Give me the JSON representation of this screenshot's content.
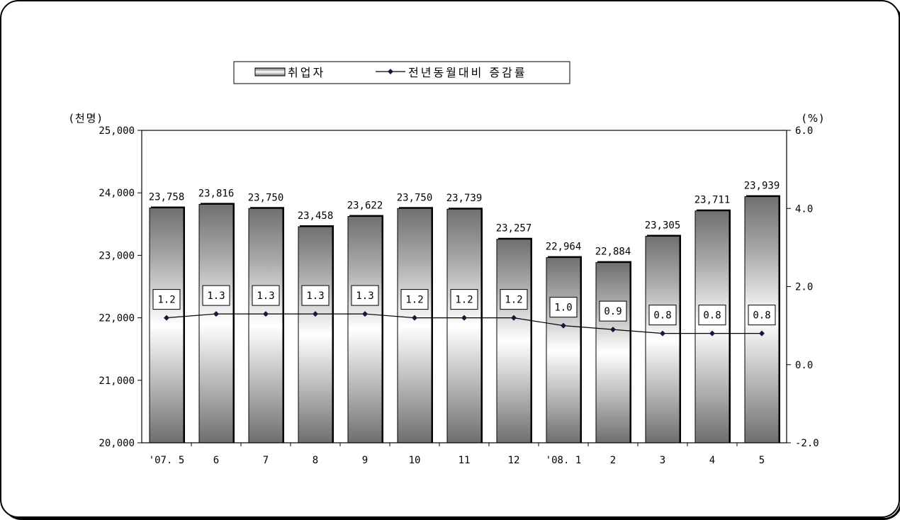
{
  "chart_data": {
    "type": "bar",
    "categories": [
      "'07. 5",
      "6",
      "7",
      "8",
      "9",
      "10",
      "11",
      "12",
      "'08. 1",
      "2",
      "3",
      "4",
      "5"
    ],
    "series": [
      {
        "name": "취업자",
        "type": "bar",
        "axis": "left",
        "values": [
          23758,
          23816,
          23750,
          23458,
          23622,
          23750,
          23739,
          23257,
          22964,
          22884,
          23305,
          23711,
          23939
        ],
        "value_labels": [
          "23,758",
          "23,816",
          "23,750",
          "23,458",
          "23,622",
          "23,750",
          "23,739",
          "23,257",
          "22,964",
          "22,884",
          "23,305",
          "23,711",
          "23,939"
        ]
      },
      {
        "name": "전년동월대비 증감률",
        "type": "line",
        "axis": "right",
        "values": [
          1.2,
          1.3,
          1.3,
          1.3,
          1.3,
          1.2,
          1.2,
          1.2,
          1.0,
          0.9,
          0.8,
          0.8,
          0.8
        ],
        "value_labels": [
          "1.2",
          "1.3",
          "1.3",
          "1.3",
          "1.3",
          "1.2",
          "1.2",
          "1.2",
          "1.0",
          "0.9",
          "0.8",
          "0.8",
          "0.8"
        ]
      }
    ],
    "y_left": {
      "unit_label": "(천명)",
      "ylim": [
        20000,
        25000
      ],
      "ticks": [
        20000,
        21000,
        22000,
        23000,
        24000,
        25000
      ],
      "tick_labels": [
        "20,000",
        "21,000",
        "22,000",
        "23,000",
        "24,000",
        "25,000"
      ]
    },
    "y_right": {
      "unit_label": "(%)",
      "ylim": [
        -2.0,
        6.0
      ],
      "ticks": [
        -2.0,
        0.0,
        2.0,
        4.0,
        6.0
      ],
      "tick_labels": [
        "-2.0",
        "0.0",
        "2.0",
        "4.0",
        "6.0"
      ]
    },
    "grid": false,
    "legend": {
      "position": "top-center",
      "items": [
        "취업자",
        "전년동월대비 증감률"
      ]
    }
  }
}
